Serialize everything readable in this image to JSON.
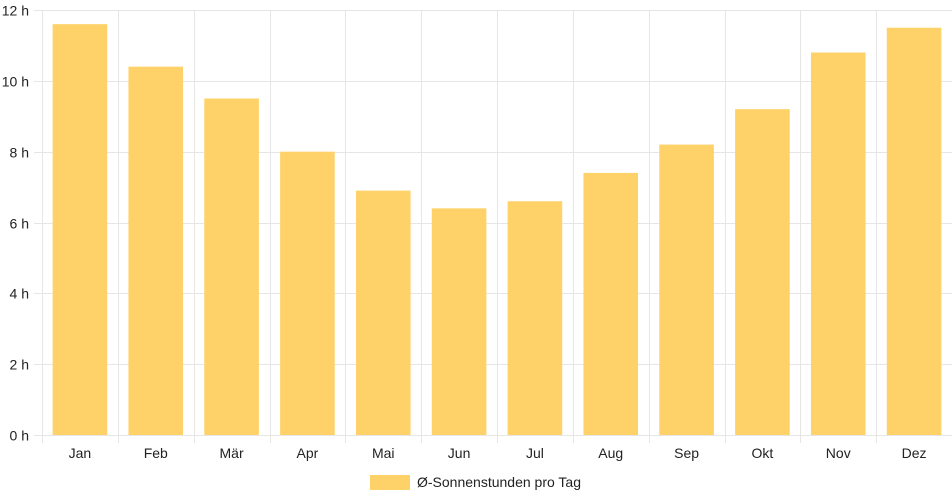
{
  "chart_data": {
    "type": "bar",
    "categories": [
      "Jan",
      "Feb",
      "Mär",
      "Apr",
      "Mai",
      "Jun",
      "Jul",
      "Aug",
      "Sep",
      "Okt",
      "Nov",
      "Dez"
    ],
    "series": [
      {
        "name": "Ø-Sonnenstunden pro Tag",
        "values": [
          11.6,
          10.4,
          9.5,
          8.0,
          6.9,
          6.4,
          6.6,
          7.4,
          8.2,
          9.2,
          10.8,
          11.5
        ]
      }
    ],
    "ylim": [
      0,
      12
    ],
    "yticks": [
      0,
      2,
      4,
      6,
      8,
      10,
      12
    ],
    "ytick_unit": "h",
    "grid": true,
    "legend": "bottom-center",
    "colors": {
      "bar": "#fed268",
      "grid": "#e6e6e6",
      "text": "#222222"
    }
  }
}
